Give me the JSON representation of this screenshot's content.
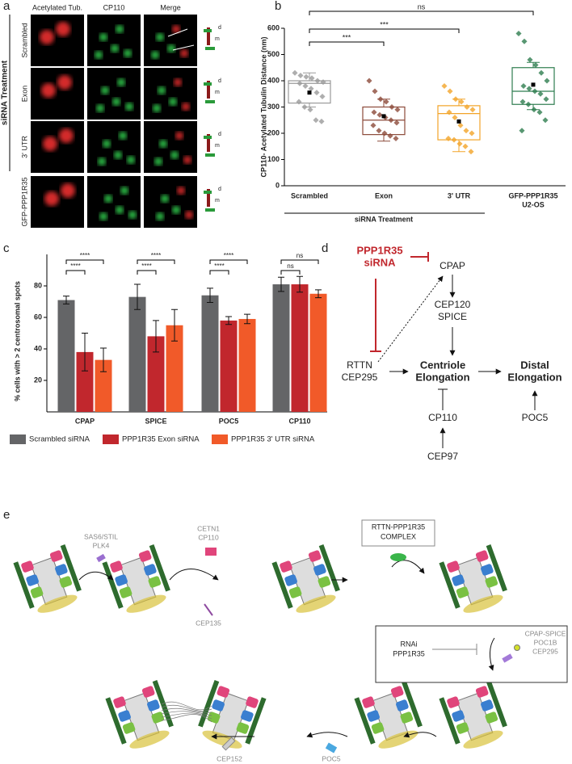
{
  "panel_labels": [
    "a",
    "b",
    "c",
    "d",
    "e"
  ],
  "panel_a": {
    "column_headers": [
      "Acetylated Tub.",
      "CP110",
      "Merge"
    ],
    "row_labels": [
      "Scrambled",
      "Exon",
      "3' UTR",
      "GFP-PPP1R35"
    ],
    "group_label": "siRNA Treatment",
    "icon_labels": [
      "d",
      "m"
    ]
  },
  "chart_data": [
    {
      "type": "box",
      "y_label": "CP110- Acetylated Tubulin Distance (nm)",
      "categories": [
        [
          "Scrambled"
        ],
        [
          "Exon"
        ],
        [
          "3' UTR"
        ],
        [
          "GFP-PPP1R35",
          "U2-OS"
        ]
      ],
      "group_label": "siRNA Treatment",
      "ylim": [
        0,
        600
      ],
      "yticks": [
        0,
        100,
        200,
        300,
        400,
        500,
        600
      ],
      "annotations": [
        "ns",
        "***",
        "***"
      ],
      "boxes": [
        {
          "color": "#9a9a9a",
          "whisker_low": 300,
          "q1": 315,
          "median": 390,
          "q3": 400,
          "whisker_high": 430,
          "mean": 355,
          "points": [
            430,
            420,
            415,
            410,
            400,
            395,
            390,
            380,
            370,
            355,
            340,
            320,
            300,
            290,
            250,
            245
          ]
        },
        {
          "color": "#8c4a3a",
          "whisker_low": 170,
          "q1": 195,
          "median": 250,
          "q3": 300,
          "whisker_high": 330,
          "mean": 265,
          "points": [
            400,
            360,
            330,
            320,
            300,
            290,
            280,
            270,
            260,
            250,
            240,
            230,
            210,
            200,
            190,
            180
          ]
        },
        {
          "color": "#f2a428",
          "whisker_low": 130,
          "q1": 175,
          "median": 275,
          "q3": 305,
          "whisker_high": 330,
          "mean": 245,
          "points": [
            380,
            360,
            330,
            320,
            300,
            290,
            280,
            260,
            230,
            210,
            200,
            180,
            175,
            160,
            150,
            130
          ]
        },
        {
          "color": "#2e7d4f",
          "whisker_low": 290,
          "q1": 310,
          "median": 360,
          "q3": 450,
          "whisker_high": 470,
          "mean": 385,
          "points": [
            580,
            550,
            480,
            460,
            430,
            400,
            380,
            370,
            360,
            350,
            330,
            320,
            310,
            290,
            280,
            250,
            210
          ]
        }
      ]
    },
    {
      "type": "bar",
      "y_label": "% cells with > 2 centrosomal spots",
      "categories": [
        "CPAP",
        "SPICE",
        "POC5",
        "CP110"
      ],
      "ylim": [
        0,
        100
      ],
      "yticks": [
        20,
        40,
        60,
        80
      ],
      "annotations": [
        [
          "****",
          "****"
        ],
        [
          "****",
          "****"
        ],
        [
          "****",
          "****"
        ],
        [
          "ns",
          "ns"
        ]
      ],
      "series": [
        {
          "name": "Scrambled siRNA",
          "color": "#646567",
          "values": [
            71,
            73,
            74,
            81
          ],
          "errors": [
            2.5,
            8,
            4.5,
            4.5
          ]
        },
        {
          "name": "PPP1R35 Exon siRNA",
          "color": "#c1272d",
          "values": [
            38,
            48,
            58,
            81
          ],
          "errors": [
            12,
            10,
            2.5,
            5
          ]
        },
        {
          "name": "PPP1R35 3' UTR siRNA",
          "color": "#f15a29",
          "values": [
            33,
            55,
            59,
            75
          ],
          "errors": [
            7.5,
            10,
            3,
            2.5
          ]
        }
      ]
    }
  ],
  "panel_d": {
    "nodes": [
      {
        "lines": [
          "PPP1R35",
          "siRNA"
        ]
      },
      {
        "lines": [
          "CPAP"
        ]
      },
      {
        "lines": [
          "CEP120",
          "SPICE"
        ]
      },
      {
        "lines": [
          "RTTN",
          "CEP295"
        ]
      },
      {
        "lines": [
          "Centriole",
          "Elongation"
        ]
      },
      {
        "lines": [
          "Distal",
          "Elongation"
        ]
      },
      {
        "lines": [
          "CP110"
        ]
      },
      {
        "lines": [
          "POC5"
        ]
      },
      {
        "lines": [
          "CEP97"
        ]
      }
    ]
  },
  "panel_e": {
    "labels": [
      {
        "lines": [
          "SAS6/STIL",
          "PLK4"
        ]
      },
      {
        "lines": [
          "CETN1",
          "CP110"
        ]
      },
      {
        "lines": [
          "CEP135"
        ]
      },
      {
        "lines": [
          "RTTN-PPP1R35",
          "COMPLEX"
        ]
      },
      {
        "lines": [
          "RNAi",
          "PPP1R35"
        ]
      },
      {
        "lines": [
          "CPAP-SPICE",
          "POC1B",
          "CEP295"
        ]
      },
      {
        "lines": [
          "POC5"
        ]
      },
      {
        "lines": [
          "CEP152"
        ]
      }
    ]
  }
}
